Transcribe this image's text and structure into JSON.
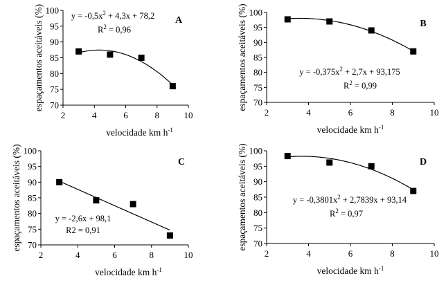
{
  "chart_data": [
    {
      "type": "scatter",
      "panel": "A",
      "ylabel": "espaçamentos aceitáveis (%)",
      "xlabel": "velocidade km h",
      "xlabel_sup": "-1",
      "xlim": [
        2,
        10
      ],
      "ylim": [
        70,
        100
      ],
      "xticks": [
        2,
        4,
        6,
        8,
        10
      ],
      "yticks": [
        70,
        75,
        80,
        85,
        90,
        95,
        100
      ],
      "x": [
        3,
        5,
        7,
        9
      ],
      "y": [
        87,
        86,
        85,
        76
      ],
      "fit": {
        "kind": "quadratic",
        "a": -0.5,
        "b": 4.3,
        "c": 78.2
      },
      "equation": {
        "pre": "y = -0,5x",
        "sup": "2",
        "post": " + 4,3x + 78,2"
      },
      "r2": {
        "pre": "R",
        "sup": "2",
        "post": " = 0,96"
      }
    },
    {
      "type": "scatter",
      "panel": "B",
      "ylabel": "espaçamentos aceitáveis (%)",
      "xlabel": "velocidade km h",
      "xlabel_sup": "-1",
      "xlim": [
        2,
        10
      ],
      "ylim": [
        70,
        100
      ],
      "xticks": [
        2,
        4,
        6,
        8,
        10
      ],
      "yticks": [
        70,
        75,
        80,
        85,
        90,
        95,
        100
      ],
      "x": [
        3,
        5,
        7,
        9
      ],
      "y": [
        97.7,
        97,
        94,
        87
      ],
      "fit": {
        "kind": "quadratic",
        "a": -0.375,
        "b": 2.7,
        "c": 93.175
      },
      "equation": {
        "pre": "y = -0,375x",
        "sup": "2",
        "post": " + 2,7x + 93,175"
      },
      "r2": {
        "pre": "R",
        "sup": "2",
        "post": " = 0,99"
      }
    },
    {
      "type": "scatter",
      "panel": "C",
      "ylabel": "espaçamentos aceitáveis (%)",
      "xlabel": "velocidade km h",
      "xlabel_sup": "-1",
      "xlim": [
        2,
        10
      ],
      "ylim": [
        70,
        100
      ],
      "xticks": [
        2,
        4,
        6,
        8,
        10
      ],
      "yticks": [
        70,
        75,
        80,
        85,
        90,
        95,
        100
      ],
      "x": [
        3,
        5,
        7,
        9
      ],
      "y": [
        90,
        84.2,
        83,
        73
      ],
      "fit": {
        "kind": "linear",
        "a": -2.6,
        "b": 98.1
      },
      "equation": {
        "pre": "y = -2,6x + 98,1",
        "sup": "",
        "post": ""
      },
      "r2": {
        "pre": "R2 = 0,91",
        "sup": "",
        "post": ""
      }
    },
    {
      "type": "scatter",
      "panel": "D",
      "ylabel": "espaçamentos aceitáveis (%)",
      "xlabel": "velocidade km h",
      "xlabel_sup": "-1",
      "xlim": [
        2,
        10
      ],
      "ylim": [
        70,
        100
      ],
      "xticks": [
        2,
        4,
        6,
        8,
        10
      ],
      "yticks": [
        70,
        75,
        80,
        85,
        90,
        95,
        100
      ],
      "x": [
        3,
        5,
        7,
        9
      ],
      "y": [
        98.3,
        96.2,
        95,
        87
      ],
      "fit": {
        "kind": "quadratic",
        "a": -0.3801,
        "b": 2.7839,
        "c": 93.14
      },
      "equation": {
        "pre": "y = -0,3801x",
        "sup": "2",
        "post": " + 2,7839x + 93,14"
      },
      "r2": {
        "pre": "R",
        "sup": "2",
        "post": " = 0,97"
      }
    }
  ]
}
